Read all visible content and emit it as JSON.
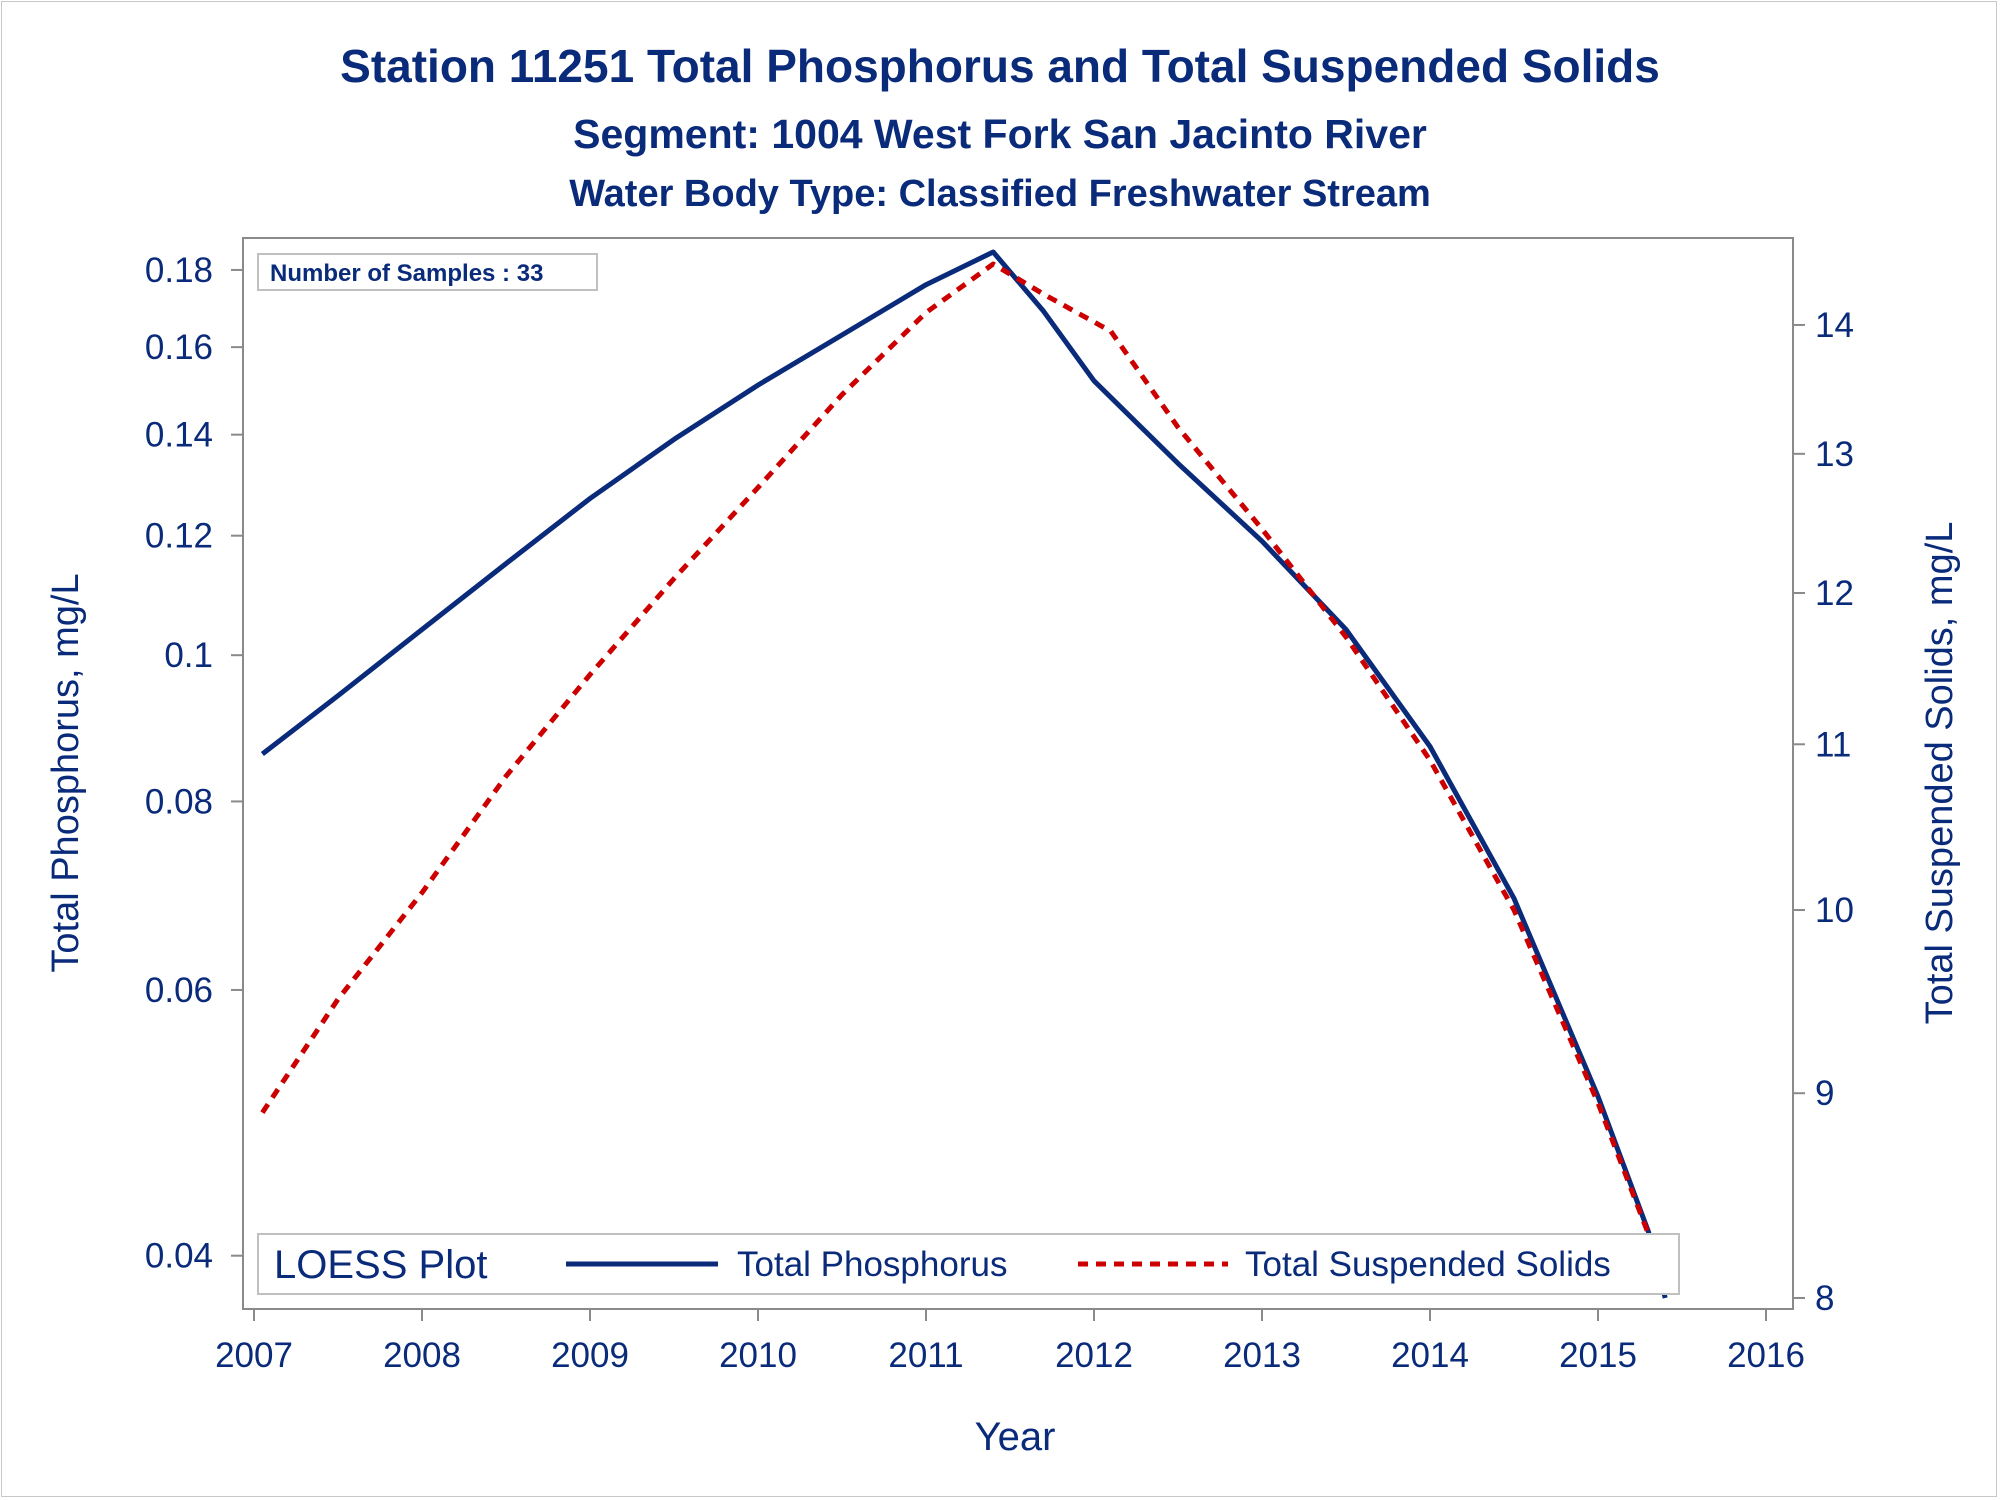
{
  "chart_data": {
    "type": "line",
    "title": "Station 11251  Total Phosphorus and Total Suspended Solids",
    "subtitle": "Segment: 1004  West Fork San Jacinto River",
    "subtitle2": "Water Body Type: Classified Freshwater Stream",
    "xlabel": "Year",
    "ylabel_left": "Total Phosphorus, mg/L",
    "ylabel_right": "Total Suspended Solids, mg/L",
    "xlim": [
      2007,
      2016
    ],
    "x_ticks": [
      2007,
      2008,
      2009,
      2010,
      2011,
      2012,
      2013,
      2014,
      2015,
      2016
    ],
    "y_left_scale": "log",
    "y_left_lim": [
      0.0375,
      0.185
    ],
    "y_left_ticks": [
      0.04,
      0.06,
      0.08,
      0.1,
      0.12,
      0.14,
      0.16,
      0.18
    ],
    "y_left_tick_labels": [
      "0.04",
      "0.06",
      "0.08",
      "0.1",
      "0.12",
      "0.14",
      "0.16",
      "0.18"
    ],
    "y_right_scale": "log",
    "y_right_lim": [
      8,
      14.6
    ],
    "y_right_ticks": [
      8,
      9,
      10,
      11,
      12,
      13,
      14
    ],
    "y_right_tick_labels": [
      "8",
      "9",
      "10",
      "11",
      "12",
      "13",
      "14"
    ],
    "annotation": "Number of Samples : 33",
    "legend": {
      "title": "LOESS Plot",
      "placement": "bottom-inside",
      "entries": [
        "Total Phosphorus",
        "Total Suspended Solids"
      ]
    },
    "series": [
      {
        "name": "Total Phosphorus",
        "axis": "left",
        "color": "#0a2a7a",
        "style": "solid",
        "x": [
          2007.05,
          2007.5,
          2008.0,
          2008.5,
          2009.0,
          2009.5,
          2010.0,
          2010.5,
          2011.0,
          2011.4,
          2011.7,
          2012.0,
          2012.5,
          2013.0,
          2013.5,
          2014.0,
          2014.5,
          2015.0,
          2015.3,
          2015.4
        ],
        "values": [
          0.086,
          0.094,
          0.104,
          0.115,
          0.127,
          0.139,
          0.151,
          0.163,
          0.176,
          0.185,
          0.169,
          0.152,
          0.134,
          0.119,
          0.104,
          0.087,
          0.069,
          0.051,
          0.0415,
          0.0375
        ]
      },
      {
        "name": "Total Suspended Solids",
        "axis": "right",
        "color": "#cc0000",
        "style": "dashed",
        "x": [
          2007.05,
          2007.5,
          2008.0,
          2008.5,
          2009.0,
          2009.5,
          2010.0,
          2010.5,
          2011.0,
          2011.4,
          2011.7,
          2012.1,
          2012.5,
          2013.0,
          2013.5,
          2014.0,
          2014.5,
          2015.0,
          2015.3,
          2015.4
        ],
        "values": [
          8.9,
          9.5,
          10.1,
          10.8,
          11.45,
          12.1,
          12.75,
          13.45,
          14.1,
          14.5,
          14.25,
          13.95,
          13.2,
          12.45,
          11.7,
          10.9,
          10.0,
          8.95,
          8.3,
          8.1
        ]
      }
    ]
  }
}
